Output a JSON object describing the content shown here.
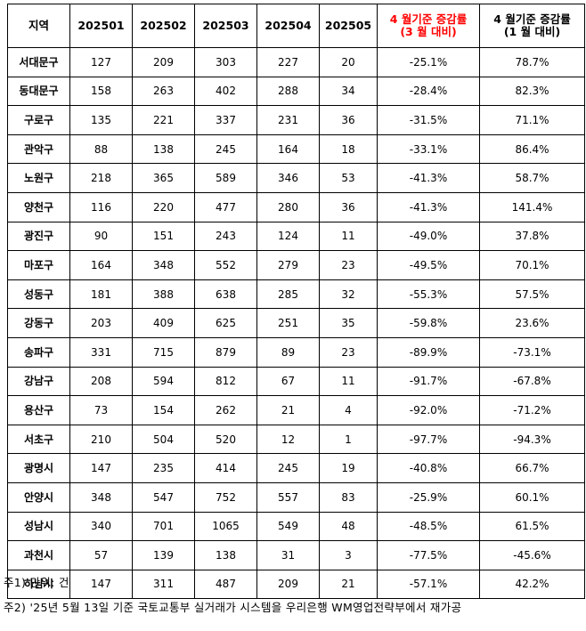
{
  "table": {
    "headers": {
      "region": "지역",
      "months": [
        "202501",
        "202502",
        "202503",
        "202504",
        "202505"
      ],
      "rate_mar_line1": "4 월기준  증감률",
      "rate_mar_line2": "(3 월  대비)",
      "rate_jan_line1": "4 월기준  증감률",
      "rate_jan_line2": "(1 월  대비)"
    },
    "rows": [
      {
        "region": "서대문구",
        "m1": "127",
        "m2": "209",
        "m3": "303",
        "m4": "227",
        "m5": "20",
        "rate_mar": "-25.1%",
        "rate_jan": "78.7%"
      },
      {
        "region": "동대문구",
        "m1": "158",
        "m2": "263",
        "m3": "402",
        "m4": "288",
        "m5": "34",
        "rate_mar": "-28.4%",
        "rate_jan": "82.3%"
      },
      {
        "region": "구로구",
        "m1": "135",
        "m2": "221",
        "m3": "337",
        "m4": "231",
        "m5": "36",
        "rate_mar": "-31.5%",
        "rate_jan": "71.1%"
      },
      {
        "region": "관악구",
        "m1": "88",
        "m2": "138",
        "m3": "245",
        "m4": "164",
        "m5": "18",
        "rate_mar": "-33.1%",
        "rate_jan": "86.4%"
      },
      {
        "region": "노원구",
        "m1": "218",
        "m2": "365",
        "m3": "589",
        "m4": "346",
        "m5": "53",
        "rate_mar": "-41.3%",
        "rate_jan": "58.7%"
      },
      {
        "region": "양천구",
        "m1": "116",
        "m2": "220",
        "m3": "477",
        "m4": "280",
        "m5": "36",
        "rate_mar": "-41.3%",
        "rate_jan": "141.4%"
      },
      {
        "region": "광진구",
        "m1": "90",
        "m2": "151",
        "m3": "243",
        "m4": "124",
        "m5": "11",
        "rate_mar": "-49.0%",
        "rate_jan": "37.8%"
      },
      {
        "region": "마포구",
        "m1": "164",
        "m2": "348",
        "m3": "552",
        "m4": "279",
        "m5": "23",
        "rate_mar": "-49.5%",
        "rate_jan": "70.1%"
      },
      {
        "region": "성동구",
        "m1": "181",
        "m2": "388",
        "m3": "638",
        "m4": "285",
        "m5": "32",
        "rate_mar": "-55.3%",
        "rate_jan": "57.5%"
      },
      {
        "region": "강동구",
        "m1": "203",
        "m2": "409",
        "m3": "625",
        "m4": "251",
        "m5": "35",
        "rate_mar": "-59.8%",
        "rate_jan": "23.6%"
      },
      {
        "region": "송파구",
        "m1": "331",
        "m2": "715",
        "m3": "879",
        "m4": "89",
        "m5": "23",
        "rate_mar": "-89.9%",
        "rate_jan": "-73.1%"
      },
      {
        "region": "강남구",
        "m1": "208",
        "m2": "594",
        "m3": "812",
        "m4": "67",
        "m5": "11",
        "rate_mar": "-91.7%",
        "rate_jan": "-67.8%"
      },
      {
        "region": "용산구",
        "m1": "73",
        "m2": "154",
        "m3": "262",
        "m4": "21",
        "m5": "4",
        "rate_mar": "-92.0%",
        "rate_jan": "-71.2%"
      },
      {
        "region": "서초구",
        "m1": "210",
        "m2": "504",
        "m3": "520",
        "m4": "12",
        "m5": "1",
        "rate_mar": "-97.7%",
        "rate_jan": "-94.3%"
      },
      {
        "region": "광명시",
        "m1": "147",
        "m2": "235",
        "m3": "414",
        "m4": "245",
        "m5": "19",
        "rate_mar": "-40.8%",
        "rate_jan": "66.7%"
      },
      {
        "region": "안양시",
        "m1": "348",
        "m2": "547",
        "m3": "752",
        "m4": "557",
        "m5": "83",
        "rate_mar": "-25.9%",
        "rate_jan": "60.1%"
      },
      {
        "region": "성남시",
        "m1": "340",
        "m2": "701",
        "m3": "1065",
        "m4": "549",
        "m5": "48",
        "rate_mar": "-48.5%",
        "rate_jan": "61.5%"
      },
      {
        "region": "과천시",
        "m1": "57",
        "m2": "139",
        "m3": "138",
        "m4": "31",
        "m5": "3",
        "rate_mar": "-77.5%",
        "rate_jan": "-45.6%"
      },
      {
        "region": "하남시",
        "m1": "147",
        "m2": "311",
        "m3": "487",
        "m4": "209",
        "m5": "21",
        "rate_mar": "-57.1%",
        "rate_jan": "42.2%"
      }
    ]
  },
  "notes": {
    "note1": "주1) 단위: 건",
    "note2": "주2) '25년 5월 13일 기준 국토교통부 실거래가 시스템을 우리은행 WM영업전략부에서 재가공"
  },
  "colors": {
    "highlight_header": "#ff0000",
    "border": "#000000"
  }
}
